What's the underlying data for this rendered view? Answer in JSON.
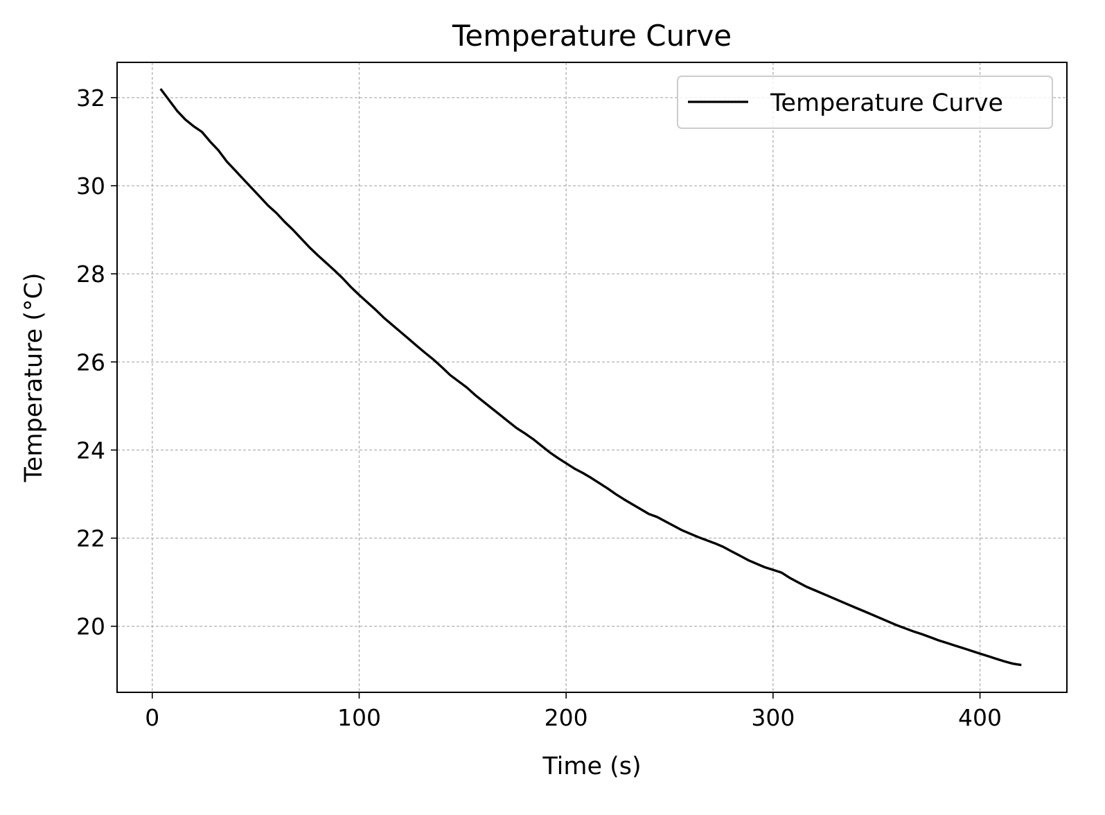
{
  "chart_data": {
    "type": "line",
    "title": "Temperature Curve",
    "xlabel": "Time (s)",
    "ylabel": "Temperature (°C)",
    "xlim": [
      -17,
      442
    ],
    "ylim": [
      18.5,
      32.8
    ],
    "xticks": [
      0,
      100,
      200,
      300,
      400
    ],
    "yticks": [
      20,
      22,
      24,
      26,
      28,
      30,
      32
    ],
    "grid": true,
    "legend_position": "top-right",
    "series": [
      {
        "name": "Temperature Curve",
        "color": "#000000",
        "x": [
          4,
          8,
          12,
          16,
          20,
          24,
          28,
          32,
          36,
          40,
          44,
          48,
          52,
          56,
          60,
          64,
          68,
          72,
          76,
          80,
          84,
          88,
          92,
          96,
          100,
          104,
          108,
          112,
          116,
          120,
          124,
          128,
          132,
          136,
          140,
          144,
          148,
          152,
          156,
          160,
          164,
          168,
          172,
          176,
          180,
          184,
          188,
          192,
          196,
          200,
          204,
          208,
          212,
          216,
          220,
          224,
          228,
          232,
          236,
          240,
          244,
          248,
          252,
          256,
          260,
          264,
          268,
          272,
          276,
          280,
          284,
          288,
          292,
          296,
          300,
          304,
          308,
          312,
          316,
          320,
          324,
          328,
          332,
          336,
          340,
          344,
          348,
          352,
          356,
          360,
          364,
          368,
          372,
          376,
          380,
          384,
          388,
          392,
          396,
          400,
          404,
          408,
          412,
          416,
          420
        ],
        "y": [
          32.2,
          31.95,
          31.7,
          31.5,
          31.35,
          31.22,
          31.0,
          30.8,
          30.55,
          30.35,
          30.15,
          29.95,
          29.75,
          29.55,
          29.38,
          29.18,
          29.0,
          28.8,
          28.6,
          28.42,
          28.25,
          28.08,
          27.9,
          27.7,
          27.52,
          27.35,
          27.18,
          27.0,
          26.84,
          26.68,
          26.52,
          26.36,
          26.2,
          26.05,
          25.88,
          25.7,
          25.56,
          25.42,
          25.25,
          25.1,
          24.95,
          24.8,
          24.65,
          24.5,
          24.38,
          24.25,
          24.1,
          23.95,
          23.82,
          23.7,
          23.58,
          23.48,
          23.37,
          23.25,
          23.13,
          23.0,
          22.88,
          22.77,
          22.66,
          22.55,
          22.48,
          22.38,
          22.28,
          22.18,
          22.1,
          22.02,
          21.95,
          21.88,
          21.8,
          21.7,
          21.6,
          21.5,
          21.42,
          21.34,
          21.28,
          21.22,
          21.1,
          21.0,
          20.9,
          20.82,
          20.74,
          20.66,
          20.58,
          20.5,
          20.42,
          20.34,
          20.26,
          20.18,
          20.1,
          20.02,
          19.95,
          19.88,
          19.82,
          19.75,
          19.68,
          19.62,
          19.56,
          19.5,
          19.44,
          19.38,
          19.32,
          19.26,
          19.2,
          19.15,
          19.12
        ]
      }
    ]
  }
}
